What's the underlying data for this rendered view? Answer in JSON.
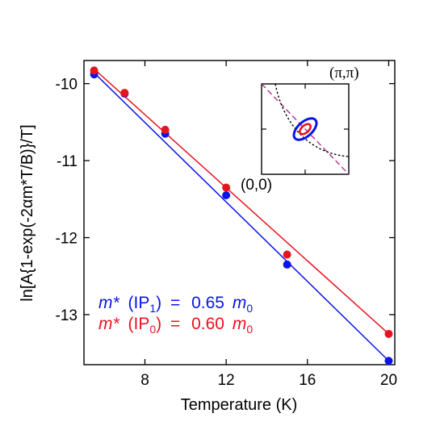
{
  "chart_data": {
    "type": "scatter",
    "title": "",
    "xlabel": "Temperature (K)",
    "ylabel": "ln[A{1-exp(-2αm*T/B)}/T]",
    "xlim": [
      5,
      20.3
    ],
    "ylim": [
      -13.65,
      -9.7
    ],
    "x_ticks": [
      8,
      12,
      16,
      20
    ],
    "x_tick_labels": [
      "8",
      "12",
      "16",
      "20"
    ],
    "y_ticks": [
      -10,
      -11,
      -12,
      -13
    ],
    "y_tick_labels": [
      "-10",
      "-11",
      "-12",
      "-13"
    ],
    "grid": false,
    "series": [
      {
        "name": "m* (IP1) = 0.65 m0",
        "color": "#0a14e6",
        "x": [
          5.5,
          7,
          9,
          12,
          15,
          20
        ],
        "y": [
          -9.88,
          -10.13,
          -10.65,
          -11.45,
          -12.35,
          -13.6
        ],
        "fit": [
          [
            5.5,
            -9.86
          ],
          [
            20,
            -13.6
          ]
        ]
      },
      {
        "name": "m* (IP0) = 0.60 m0",
        "color": "#e6141e",
        "x": [
          5.5,
          7,
          9,
          12,
          15,
          20
        ],
        "y": [
          -9.83,
          -10.12,
          -10.6,
          -11.35,
          -12.22,
          -13.25
        ],
        "fit": [
          [
            5.5,
            -9.81
          ],
          [
            20,
            -13.25
          ]
        ]
      }
    ],
    "legend": [
      {
        "m": "m*",
        "ip": "(IP",
        "sub": "1",
        "close": ")",
        "eq": "=",
        "val": "0.65",
        "unit": "m",
        "unit_sub": "0",
        "color": "#0a14e6"
      },
      {
        "m": "m*",
        "ip": "(IP",
        "sub": "0",
        "close": ")",
        "eq": "=",
        "val": "0.60",
        "unit": "m",
        "unit_sub": "0",
        "color": "#e6141e"
      }
    ],
    "inset": {
      "label_top_right": "(π,π)",
      "label_bottom_left": "(0,0)"
    }
  }
}
